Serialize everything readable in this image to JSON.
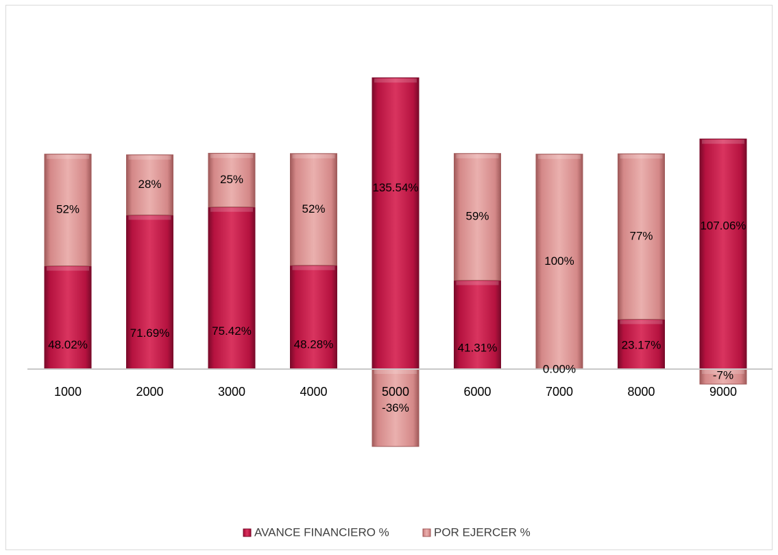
{
  "colors": {
    "avance": "#b5123f",
    "avance_light": "#d9345f",
    "avance_dark": "#7a0a2a",
    "por_ejercer": "#d48888",
    "por_ejercer_light": "#eab0ae",
    "por_ejercer_dark": "#a05a5a",
    "axis": "#c8c8c8",
    "frame": "#d9d9d9"
  },
  "chart_data": {
    "type": "bar",
    "stacked": true,
    "categories": [
      "1000",
      "2000",
      "3000",
      "4000",
      "5000",
      "6000",
      "7000",
      "8000",
      "9000"
    ],
    "series": [
      {
        "name": "AVANCE FINANCIERO %",
        "values": [
          48.02,
          71.69,
          75.42,
          48.28,
          135.54,
          41.31,
          0.0,
          23.17,
          107.06
        ],
        "labels": [
          "48.02%",
          "71.69%",
          "75.42%",
          "48.28%",
          "135.54%",
          "41.31%",
          "0.00%",
          "23.17%",
          "107.06%"
        ]
      },
      {
        "name": "POR EJERCER %",
        "values": [
          52,
          28,
          25,
          52,
          -36,
          59,
          100,
          77,
          -7
        ],
        "labels": [
          "52%",
          "28%",
          "25%",
          "52%",
          "-36%",
          "59%",
          "100%",
          "77%",
          "-7%"
        ]
      }
    ],
    "ylim": [
      -36,
      136
    ],
    "grid": false,
    "legend": "bottom-center",
    "axis_line": true
  }
}
